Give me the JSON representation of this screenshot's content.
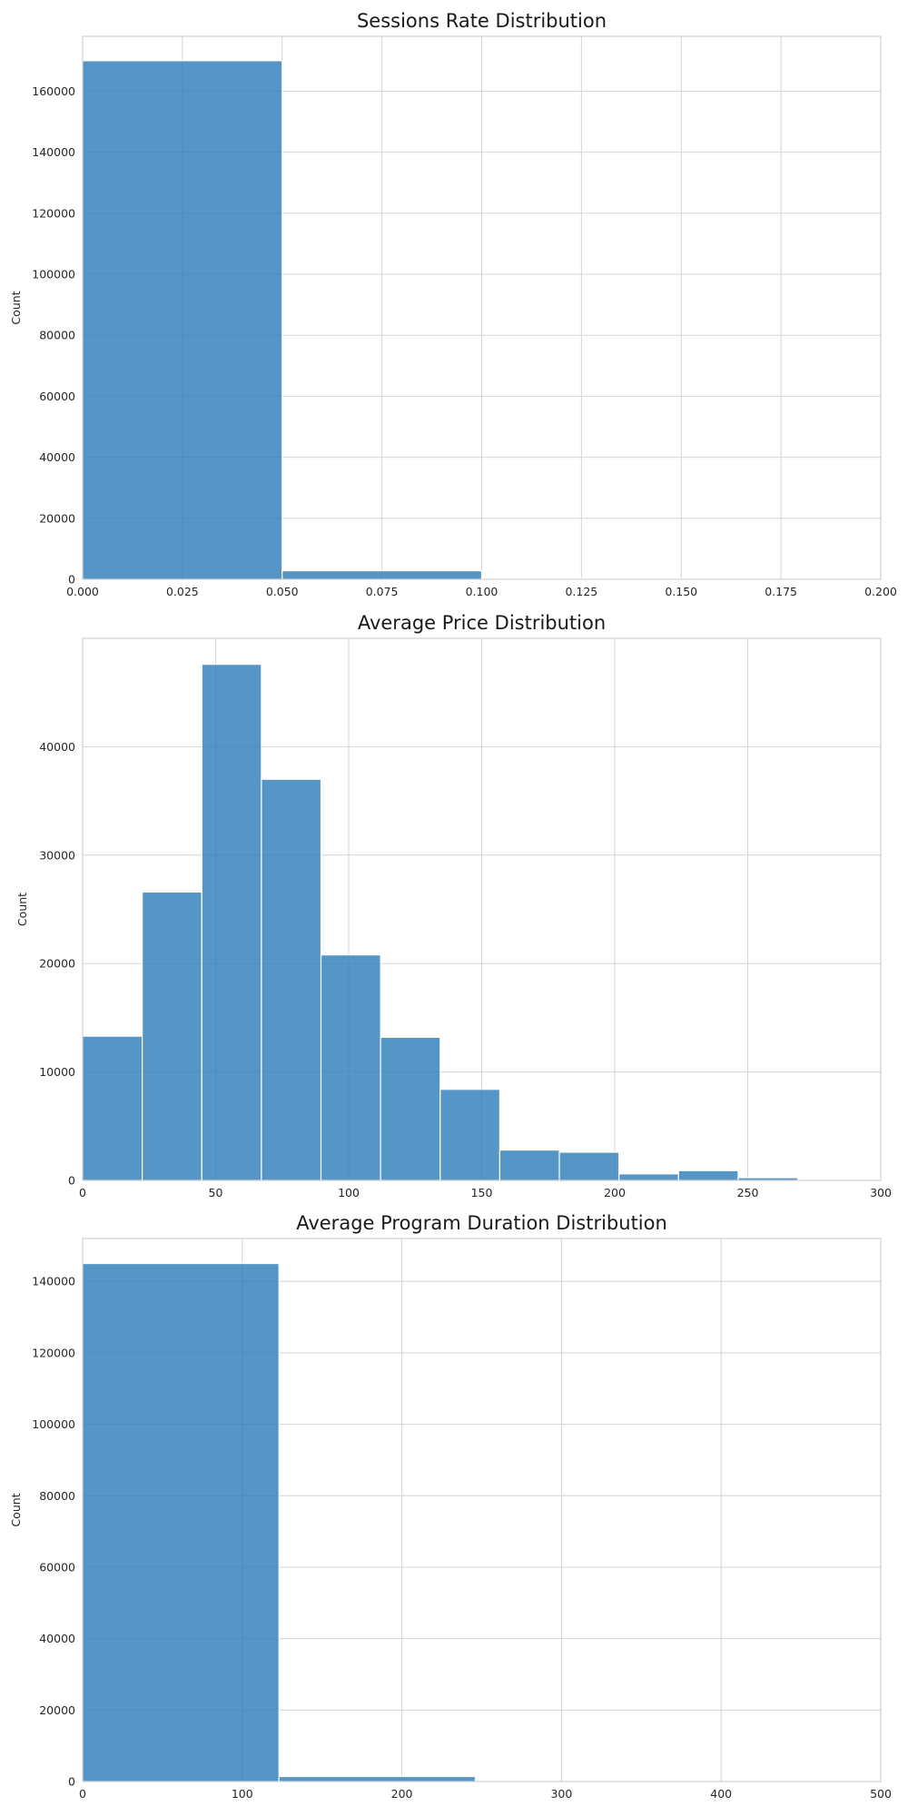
{
  "chart_data": [
    {
      "type": "bar",
      "title": "Sessions Rate Distribution",
      "xlabel": "",
      "ylabel": "Count",
      "xlim": [
        0.0,
        0.2
      ],
      "ylim": [
        0,
        178000
      ],
      "xticks": [
        0.0,
        0.025,
        0.05,
        0.075,
        0.1,
        0.125,
        0.15,
        0.175,
        0.2
      ],
      "xtick_labels": [
        "0.000",
        "0.025",
        "0.050",
        "0.075",
        "0.100",
        "0.125",
        "0.150",
        "0.175",
        "0.200"
      ],
      "yticks": [
        0,
        20000,
        40000,
        60000,
        80000,
        100000,
        120000,
        140000,
        160000
      ],
      "ytick_labels": [
        "0",
        "20000",
        "40000",
        "60000",
        "80000",
        "100000",
        "120000",
        "140000",
        "160000"
      ],
      "bin_edges": [
        0.0,
        0.05,
        0.1,
        0.15,
        0.2
      ],
      "values": [
        170000,
        2800,
        350,
        0
      ],
      "grid": true
    },
    {
      "type": "bar",
      "title": "Average Price Distribution",
      "xlabel": "",
      "ylabel": "Count",
      "xlim": [
        0,
        300
      ],
      "ylim": [
        0,
        50000
      ],
      "xticks": [
        0,
        50,
        100,
        150,
        200,
        250,
        300
      ],
      "xtick_labels": [
        "0",
        "50",
        "100",
        "150",
        "200",
        "250",
        "300"
      ],
      "yticks": [
        0,
        10000,
        20000,
        30000,
        40000
      ],
      "ytick_labels": [
        "0",
        "10000",
        "20000",
        "30000",
        "40000"
      ],
      "bin_edges": [
        0,
        22.4,
        44.8,
        67.2,
        89.6,
        112,
        134.4,
        156.8,
        179.2,
        201.6,
        224,
        246.4,
        268.8,
        291.2
      ],
      "values": [
        13300,
        26600,
        47600,
        37000,
        20800,
        13200,
        8400,
        2800,
        2600,
        600,
        900,
        250,
        0
      ],
      "grid": true
    },
    {
      "type": "bar",
      "title": "Average Program Duration Distribution",
      "xlabel": "",
      "ylabel": "Count",
      "xlim": [
        0,
        500
      ],
      "ylim": [
        0,
        152000
      ],
      "xticks": [
        0,
        100,
        200,
        300,
        400,
        500
      ],
      "xtick_labels": [
        "0",
        "100",
        "200",
        "300",
        "400",
        "500"
      ],
      "yticks": [
        0,
        20000,
        40000,
        60000,
        80000,
        100000,
        120000,
        140000
      ],
      "ytick_labels": [
        "0",
        "20000",
        "40000",
        "60000",
        "80000",
        "100000",
        "120000",
        "140000"
      ],
      "bin_edges": [
        0,
        123,
        246,
        369,
        492
      ],
      "values": [
        145000,
        1400,
        0,
        0
      ],
      "grid": true
    }
  ],
  "colors": {
    "bar": "#2f7fba",
    "grid": "#d4d4d4",
    "background": "#ffffff"
  }
}
